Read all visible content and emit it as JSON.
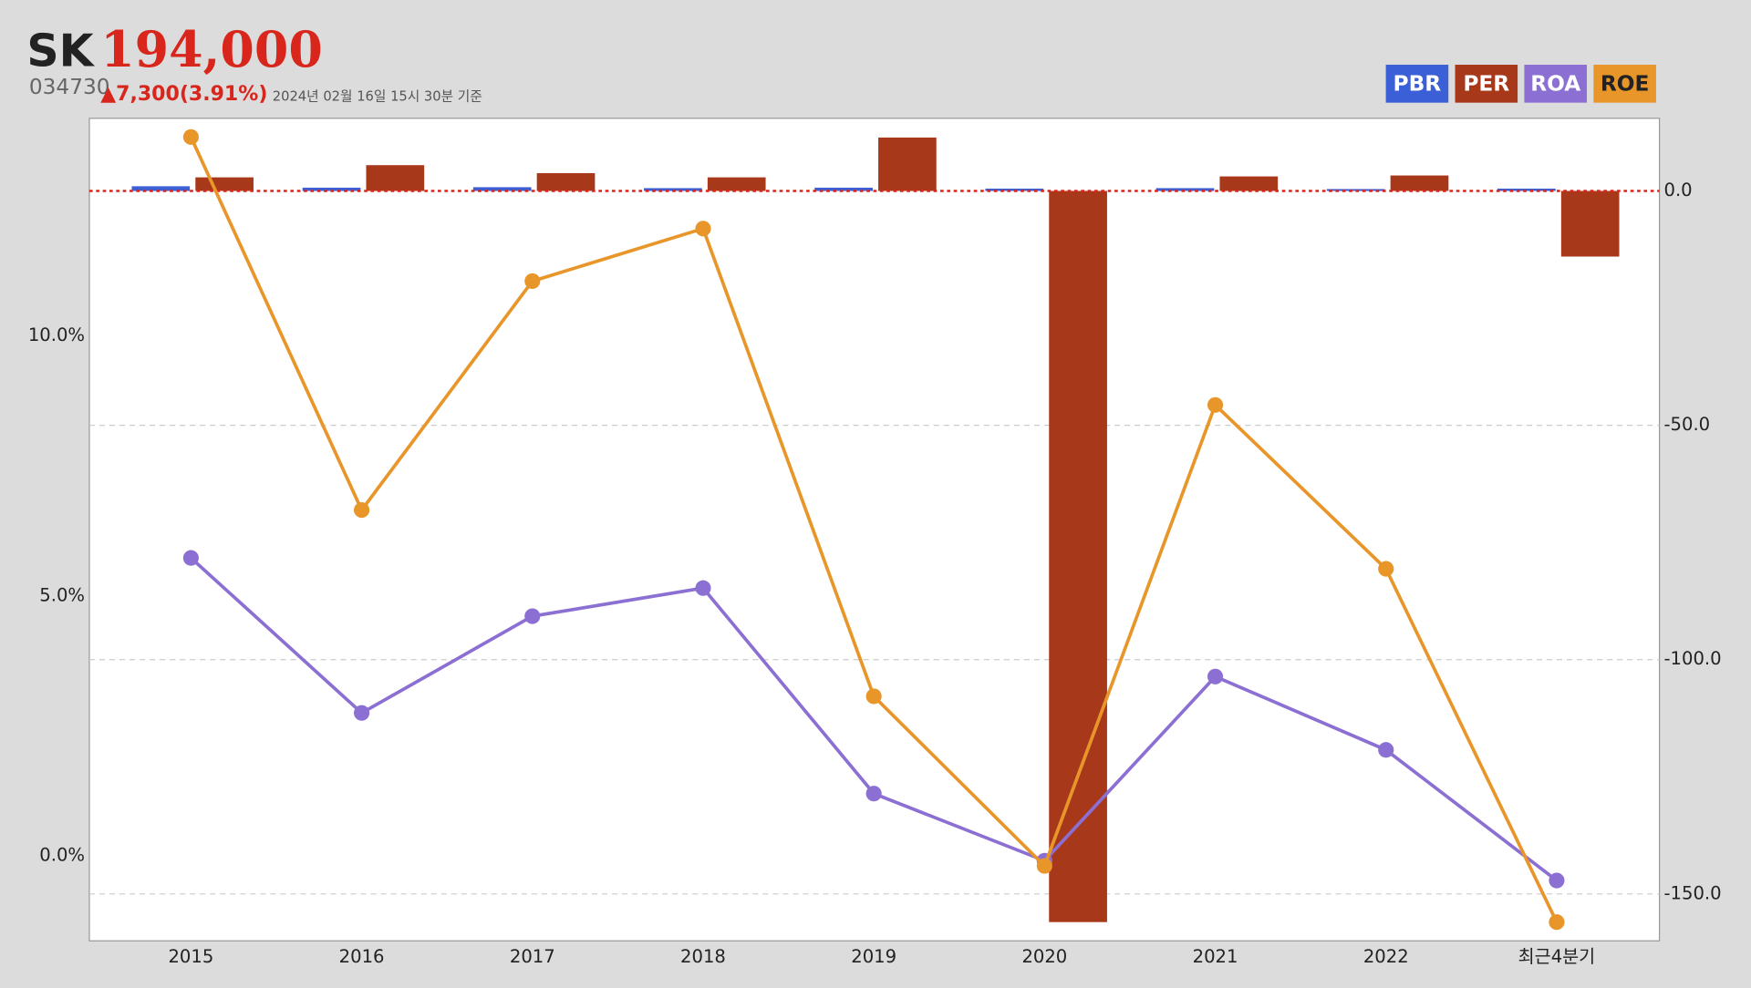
{
  "header": {
    "name": "SK",
    "price": "194,000",
    "code": "034730",
    "change": "▲7,300(3.91%)",
    "timestamp": "2024년 02월 16일 15시 30분 기준"
  },
  "chart_data": {
    "type": "bar-line",
    "categories": [
      "2015",
      "2016",
      "2017",
      "2018",
      "2019",
      "2020",
      "2021",
      "2022",
      "최근4분기"
    ],
    "series": [
      {
        "name": "PBR",
        "type": "bar",
        "axis": "y2",
        "color": "#3b5fd6",
        "values": [
          1.0,
          0.7,
          0.8,
          0.6,
          0.7,
          0.5,
          0.6,
          0.4,
          0.5
        ]
      },
      {
        "name": "PER",
        "type": "bar",
        "axis": "y2",
        "color": "#a8381a",
        "values": [
          2.9,
          5.5,
          3.8,
          2.9,
          11.4,
          -156,
          3.1,
          3.3,
          -14.0
        ]
      },
      {
        "name": "ROA",
        "type": "line",
        "color": "#8c6fd3",
        "values": [
          5.73,
          2.75,
          4.61,
          5.15,
          1.2,
          -0.09,
          3.45,
          2.04,
          -0.47
        ]
      },
      {
        "name": "ROE",
        "type": "line",
        "color": "#e8962a",
        "values": [
          13.82,
          6.65,
          11.05,
          12.06,
          3.07,
          -0.19,
          8.67,
          5.52,
          -1.27
        ]
      }
    ],
    "ylim": [
      -1.63,
      14.18
    ],
    "yticks": [
      {
        "value": 0,
        "label": "0.0%"
      },
      {
        "value": 5,
        "label": "5.0%"
      },
      {
        "value": 10,
        "label": "10.0%"
      }
    ],
    "y2lim": [
      -160,
      15.5
    ],
    "y2ticks": [
      {
        "value": 0,
        "label": "0.0"
      },
      {
        "value": -50,
        "label": "-50.0"
      },
      {
        "value": -100,
        "label": "-100.0"
      },
      {
        "value": -150,
        "label": "-150.0"
      }
    ],
    "grid": true,
    "legend": "top-right"
  }
}
